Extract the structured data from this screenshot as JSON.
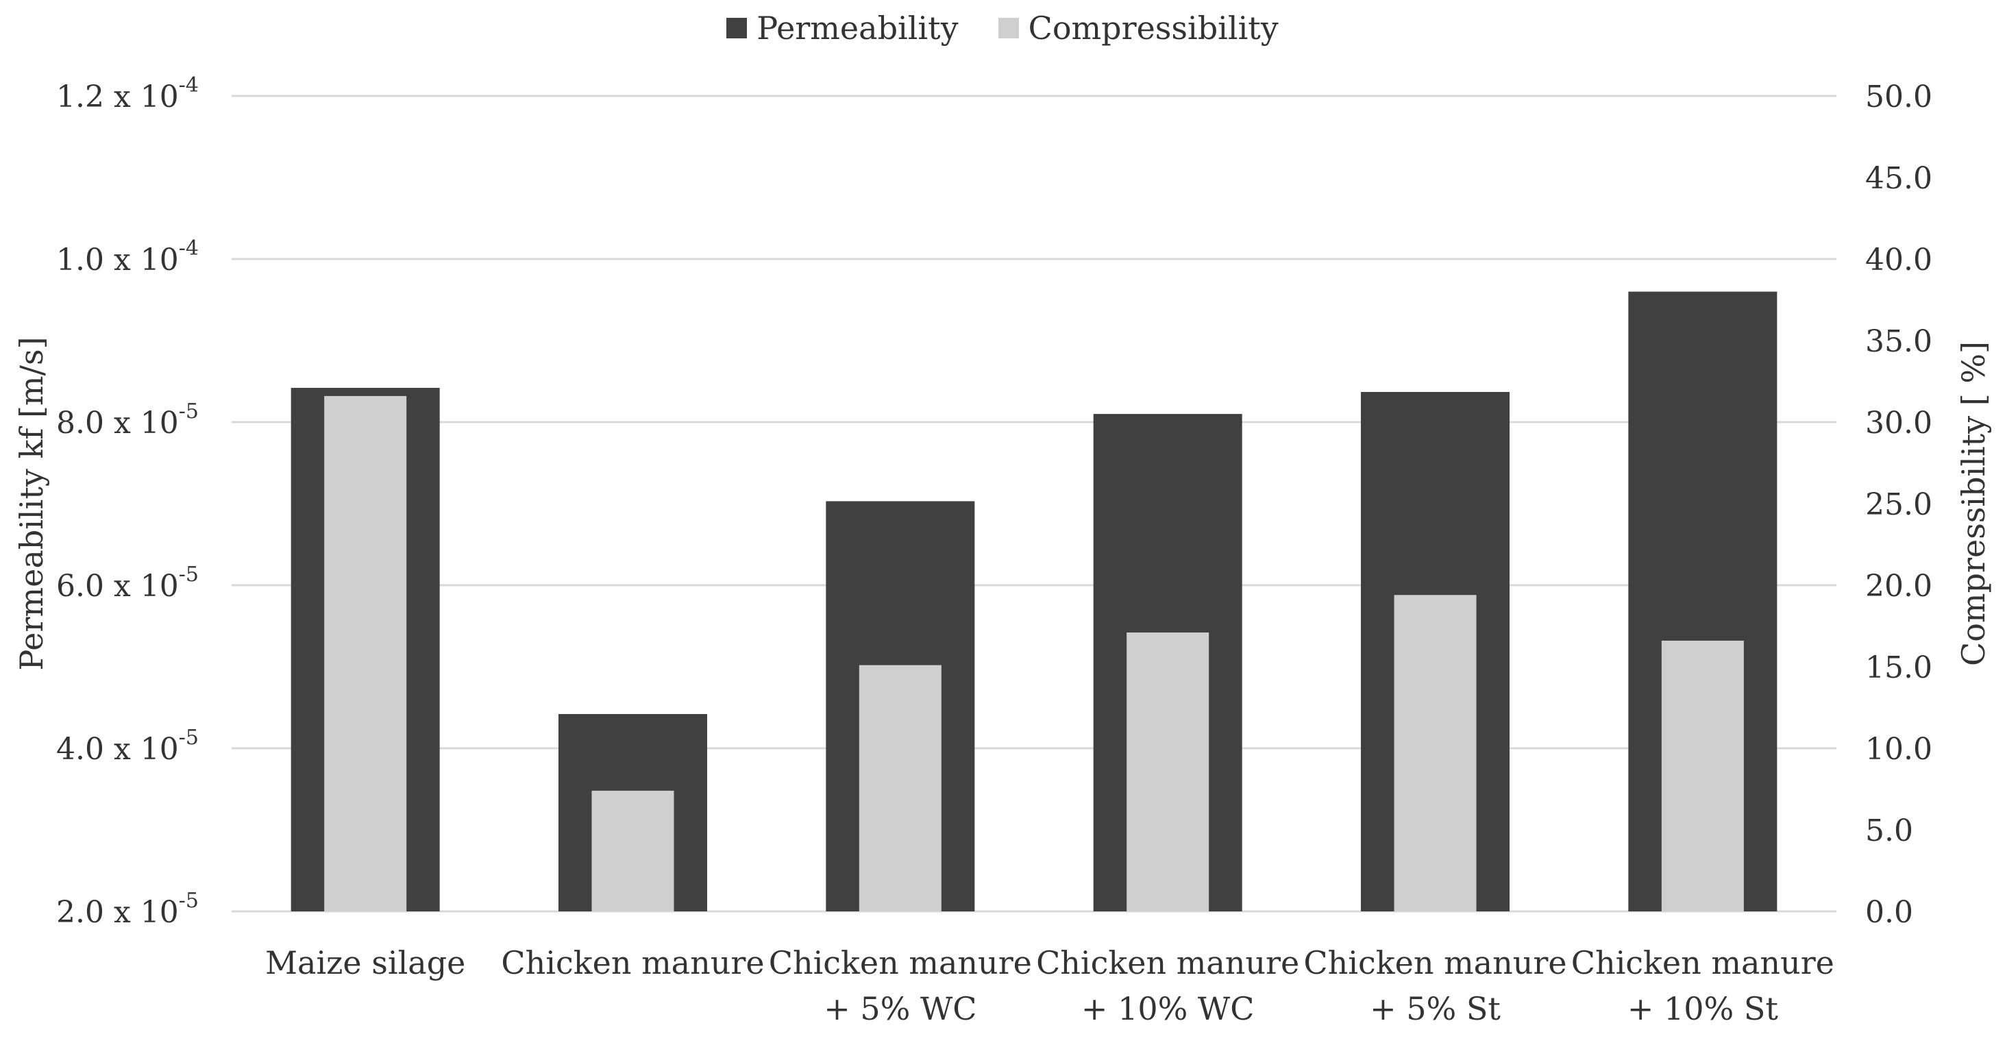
{
  "chart_data": {
    "type": "bar",
    "categories": [
      [
        "Maize silage"
      ],
      [
        "Chicken manure"
      ],
      [
        "Chicken manure",
        "+ 5% WC"
      ],
      [
        "Chicken manure",
        "+ 10% WC"
      ],
      [
        "Chicken manure",
        "+ 5% St"
      ],
      [
        "Chicken manure",
        "+ 10% St"
      ]
    ],
    "series": [
      {
        "name": "Permeability",
        "axis": "left",
        "color": "#404040",
        "values": [
          8.42e-05,
          4.42e-05,
          7.03e-05,
          8.1e-05,
          8.37e-05,
          9.6e-05
        ]
      },
      {
        "name": "Compressibility",
        "axis": "right",
        "color": "#d0cfcf",
        "values": [
          31.6,
          7.4,
          15.1,
          17.1,
          19.4,
          16.6
        ]
      }
    ],
    "y_left": {
      "label": "Permeability  kf  [m/s]",
      "range": [
        2e-05,
        0.00012
      ],
      "ticks": [
        {
          "value": 2e-05,
          "mantissa": "2.0 x 10",
          "exp": "-5"
        },
        {
          "value": 4e-05,
          "mantissa": "4.0 x 10",
          "exp": "-5"
        },
        {
          "value": 6e-05,
          "mantissa": "6.0 x 10",
          "exp": "-5"
        },
        {
          "value": 8e-05,
          "mantissa": "8.0 x 10",
          "exp": "-5"
        },
        {
          "value": 0.0001,
          "mantissa": "1.0 x 10",
          "exp": "-4"
        },
        {
          "value": 0.00012,
          "mantissa": "1.2 x 10",
          "exp": "-4"
        }
      ]
    },
    "y_right": {
      "label": "Compressibility  [ %]",
      "range": [
        0,
        50
      ],
      "ticks": [
        "0.0",
        "5.0",
        "10.0",
        "15.0",
        "20.0",
        "25.0",
        "30.0",
        "35.0",
        "40.0",
        "45.0",
        "50.0"
      ]
    },
    "grid": true,
    "legend_position": "top-center",
    "gridline_color": "#d9d9d9"
  }
}
